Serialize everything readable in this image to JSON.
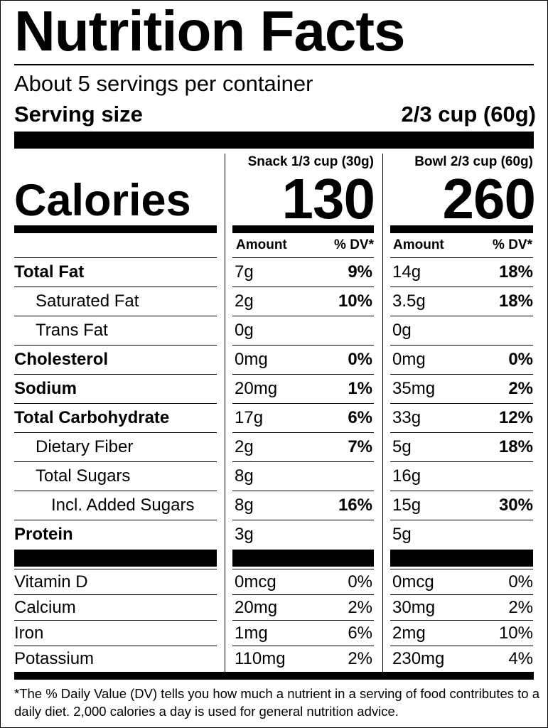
{
  "title": "Nutrition Facts",
  "servings": "About 5 servings per container",
  "serving_size_label": "Serving size",
  "serving_size_value": "2/3 cup (60g)",
  "columns": [
    {
      "header": "Snack 1/3 cup (30g)",
      "calories": "130",
      "amount_label": "Amount",
      "dv_label": "% DV*"
    },
    {
      "header": "Bowl 2/3 cup (60g)",
      "calories": "260",
      "amount_label": "Amount",
      "dv_label": "% DV*"
    }
  ],
  "calories_label": "Calories",
  "nutrients": [
    {
      "name": "Total Fat",
      "bold": true,
      "indent": 0,
      "snack": [
        "7g",
        "9%"
      ],
      "bowl": [
        "14g",
        "18%"
      ]
    },
    {
      "name": "Saturated Fat",
      "bold": false,
      "indent": 1,
      "snack": [
        "2g",
        "10%"
      ],
      "bowl": [
        "3.5g",
        "18%"
      ]
    },
    {
      "name": "Trans Fat",
      "bold": false,
      "indent": 1,
      "snack": [
        "0g",
        ""
      ],
      "bowl": [
        "0g",
        ""
      ]
    },
    {
      "name": "Cholesterol",
      "bold": true,
      "indent": 0,
      "snack": [
        "0mg",
        "0%"
      ],
      "bowl": [
        "0mg",
        "0%"
      ]
    },
    {
      "name": "Sodium",
      "bold": true,
      "indent": 0,
      "snack": [
        "20mg",
        "1%"
      ],
      "bowl": [
        "35mg",
        "2%"
      ]
    },
    {
      "name": "Total Carbohydrate",
      "bold": true,
      "indent": 0,
      "snack": [
        "17g",
        "6%"
      ],
      "bowl": [
        "33g",
        "12%"
      ]
    },
    {
      "name": "Dietary Fiber",
      "bold": false,
      "indent": 1,
      "snack": [
        "2g",
        "7%"
      ],
      "bowl": [
        "5g",
        "18%"
      ]
    },
    {
      "name": "Total Sugars",
      "bold": false,
      "indent": 1,
      "snack": [
        "8g",
        ""
      ],
      "bowl": [
        "16g",
        ""
      ]
    },
    {
      "name": "Incl. Added Sugars",
      "bold": false,
      "indent": 2,
      "snack": [
        "8g",
        "16%"
      ],
      "bowl": [
        "15g",
        "30%"
      ]
    },
    {
      "name": "Protein",
      "bold": true,
      "indent": 0,
      "snack": [
        "3g",
        ""
      ],
      "bowl": [
        "5g",
        ""
      ]
    }
  ],
  "vitamins": [
    {
      "name": "Vitamin D",
      "snack": [
        "0mcg",
        "0%"
      ],
      "bowl": [
        "0mcg",
        "0%"
      ]
    },
    {
      "name": "Calcium",
      "snack": [
        "20mg",
        "2%"
      ],
      "bowl": [
        "30mg",
        "2%"
      ]
    },
    {
      "name": "Iron",
      "snack": [
        "1mg",
        "6%"
      ],
      "bowl": [
        "2mg",
        "10%"
      ]
    },
    {
      "name": "Potassium",
      "snack": [
        "110mg",
        "2%"
      ],
      "bowl": [
        "230mg",
        "4%"
      ]
    }
  ],
  "footnote": "*The % Daily Value (DV) tells you how much a nutrient in a serving of food contributes to a daily diet. 2,000 calories a day is used for general nutrition advice."
}
